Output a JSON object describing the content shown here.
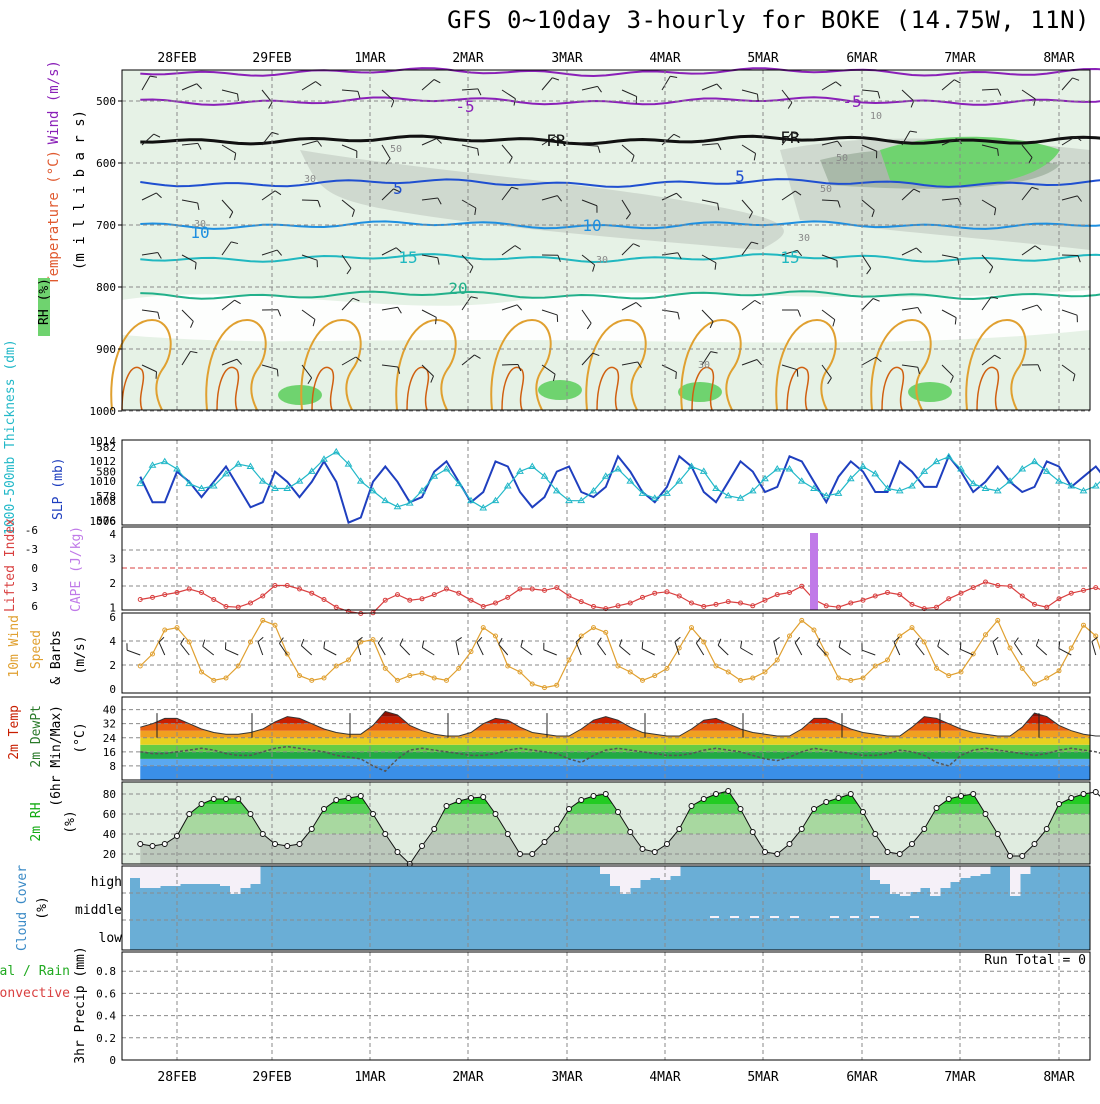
{
  "title": "GFS 0~10day 3-hourly for BOKE (14.75W, 11N)",
  "colors": {
    "frame": "#000000",
    "grid": "#8a8a8a",
    "rh_light": "#e6f2e6",
    "rh_mid": "#cfd9cf",
    "rh_dark": "#a9b9a9",
    "rh_green": "#6fd36f",
    "slp": "#1f3fbf",
    "thickness": "#22b8c8",
    "lifted": "#d94040",
    "cape": "#c07ae8",
    "wind10": "#e0a030",
    "temp_hot": "#c81e00",
    "dew": "#555555",
    "rh2m": "#22cc22",
    "cloud": "#6aaed6",
    "cloud_white": "#f5f0f8"
  },
  "x_axis": {
    "top_labels": [
      "28FEB",
      "29FEB",
      "1MAR",
      "2MAR",
      "3MAR",
      "4MAR",
      "5MAR",
      "6MAR",
      "7MAR",
      "8MAR"
    ],
    "bottom_labels": [
      "28FEB",
      "29FEB",
      "1MAR",
      "2MAR",
      "3MAR",
      "4MAR",
      "5MAR",
      "6MAR",
      "7MAR",
      "8MAR"
    ]
  },
  "panels": {
    "upper": {
      "ylabel_wind": "Wind (m/s)",
      "ylabel_temp": "Temperature (°C)",
      "ylabel_rh": "RH (%)",
      "ylabel_mb": "(m i l l i b a r s)",
      "yticks": [
        "500",
        "600",
        "700",
        "800",
        "900",
        "1000"
      ],
      "contour_labels": [
        "-5",
        "-5",
        "FR",
        "FR",
        "5",
        "5",
        "10",
        "10",
        "15",
        "15",
        "20"
      ],
      "rh_labels": [
        "50",
        "50",
        "30",
        "30",
        "30",
        "10",
        "30",
        "50",
        "30"
      ]
    },
    "slp": {
      "ylabel_left": "1000-500mb Thickness (dm)",
      "ylabel_right": "SLP (mb)",
      "yticks_left": [
        "582",
        "580",
        "578",
        "576"
      ],
      "yticks_right": [
        "1014",
        "1012",
        "1010",
        "1008",
        "1006"
      ]
    },
    "li": {
      "ylabel_left": "Lifted Index",
      "ylabel_right": "CAPE (J/kg)",
      "yticks_left": [
        "-6",
        "-3",
        "0",
        "3",
        "6"
      ],
      "yticks_right": [
        "4",
        "3",
        "2",
        "1"
      ]
    },
    "wind": {
      "ylabel_1": "10m Wind",
      "ylabel_2": "Speed",
      "ylabel_3": "& Barbs",
      "units": "(m/s)",
      "yticks": [
        "6",
        "4",
        "2",
        "0"
      ]
    },
    "temp": {
      "ylabel_1": "2m Temp",
      "ylabel_2": "2m DewPt",
      "ylabel_3": "(6hr Min/Max)",
      "units": "(°C)",
      "yticks": [
        "40",
        "32",
        "24",
        "16",
        "8"
      ]
    },
    "rh": {
      "ylabel": "2m RH",
      "units": "(%)",
      "yticks": [
        "80",
        "60",
        "40",
        "20"
      ]
    },
    "cloud": {
      "ylabel": "Cloud Cover",
      "units": "(%)",
      "levels": [
        "high",
        "middle",
        "low"
      ]
    },
    "precip": {
      "ylabel_1": "Total / Rain",
      "ylabel_2": "Convective",
      "ylabel_3": "3hr Precip (mm)",
      "yticks": [
        "0.8",
        "0.6",
        "0.4",
        "0.2",
        "0"
      ],
      "run_total": "Run Total = 0"
    }
  },
  "chart_data": [
    {
      "type": "line",
      "panel": "1000-500mb Thickness / SLP",
      "x_start": "2024-02-27 15Z",
      "x_step_hours": 3,
      "series": [
        {
          "name": "SLP (mb)",
          "values": [
            1010.5,
            1008,
            1008,
            1011,
            1010,
            1008.5,
            1010,
            1011.5,
            1009.5,
            1007.5,
            1008,
            1011,
            1010,
            1008.5,
            1010,
            1012,
            1010,
            1006,
            1006.5,
            1010,
            1011.5,
            1010,
            1008,
            1008.5,
            1011,
            1012,
            1010,
            1008,
            1009,
            1012,
            1011.5,
            1009,
            1007.5,
            1008.5,
            1011,
            1011.5,
            1009,
            1008.5,
            1009.5,
            1012.5,
            1011,
            1009,
            1008,
            1009.5,
            1012.5,
            1011.5,
            1009,
            1008,
            1010,
            1012,
            1011,
            1009,
            1009.5,
            1012.5,
            1012,
            1010,
            1008,
            1010.5,
            1012,
            1011,
            1009,
            1009,
            1012,
            1011,
            1009.5,
            1009.5,
            1012.5,
            1011,
            1009,
            1010,
            1011.5,
            1010,
            1009,
            1009.5,
            1012,
            1011.5,
            1009.5,
            1010.5,
            1011.5,
            1010,
            1011.5
          ]
        },
        {
          "name": "1000-500mb Thickness (dm)",
          "values": [
            579,
            580.5,
            580.8,
            580.2,
            579,
            578.6,
            578.8,
            579.8,
            580.6,
            580.4,
            579.2,
            578.6,
            578.6,
            579.2,
            580,
            581,
            581.6,
            580.6,
            579.2,
            578.4,
            577.6,
            577.1,
            577.4,
            578.4,
            579.6,
            580.2,
            579,
            577.6,
            577,
            577.6,
            578.8,
            580,
            580.4,
            579.6,
            578.4,
            577.6,
            577.6,
            578.4,
            579.6,
            580.2,
            579.2,
            578.2,
            577.8,
            578.2,
            579.2,
            580.4,
            580,
            578.6,
            578,
            577.8,
            578.4,
            579.4,
            580.2,
            580.2,
            579.2,
            578.6,
            578,
            578.2,
            579.4,
            580.4,
            579.8,
            578.6,
            578.4,
            578.8,
            580,
            580.8,
            581.2,
            580.2,
            579,
            578.6,
            578.4,
            579.2,
            580.2,
            580.8,
            580,
            579.2,
            578.8,
            578.4,
            578.8,
            579.8,
            578.2
          ]
        }
      ],
      "ylim_left": [
        576,
        582
      ],
      "ylim_right": [
        1006,
        1014
      ]
    },
    {
      "type": "line",
      "panel": "Lifted Index / CAPE",
      "series": [
        {
          "name": "Lifted Index",
          "values": [
            4.5,
            4.2,
            3.8,
            3.5,
            3,
            3.5,
            4.5,
            5.5,
            5.6,
            5,
            4,
            2.5,
            2.5,
            3,
            3.6,
            4.5,
            5.6,
            6.2,
            6.5,
            6.4,
            4.6,
            3.8,
            4.6,
            4.4,
            3.8,
            3,
            3.6,
            4.6,
            5.5,
            5,
            4.2,
            3,
            3,
            3.2,
            2.8,
            4,
            4.8,
            5.5,
            5.8,
            5.4,
            5,
            4.2,
            3.6,
            3.4,
            4,
            5,
            5.5,
            5.2,
            4.8,
            5,
            5.4,
            4.6,
            3.8,
            3.5,
            2.6,
            4.5,
            5.4,
            5.6,
            5,
            4.6,
            4,
            3.5,
            3.8,
            5.2,
            5.8,
            5.6,
            4.4,
            3.6,
            2.8,
            2,
            2.5,
            2.6,
            4,
            5.2,
            5.6,
            4.4,
            3.6,
            3.2,
            2.8,
            3.5,
            5.2
          ]
        },
        {
          "name": "CAPE (J/kg)",
          "bar_index": 55,
          "bar_value": 4
        }
      ],
      "ylim_left": [
        -6,
        6
      ],
      "ylim_right": [
        1,
        4.5
      ]
    },
    {
      "type": "line",
      "panel": "10m Wind Speed",
      "series": [
        {
          "name": "10m Wind Speed (m/s)",
          "values": [
            2,
            3,
            5,
            5.2,
            4,
            1.5,
            0.8,
            1,
            2,
            4,
            5.8,
            5.4,
            3,
            1.2,
            0.8,
            1,
            2,
            2.5,
            4,
            4.2,
            1.8,
            0.8,
            1.2,
            1.4,
            1,
            0.8,
            1.8,
            3.2,
            5.2,
            4.5,
            2,
            1.5,
            0.5,
            0.2,
            0.4,
            2.5,
            4.5,
            5.2,
            4.8,
            2,
            1.5,
            0.8,
            1.2,
            1.8,
            3.5,
            5.2,
            4,
            2,
            1.5,
            0.8,
            1,
            1.5,
            2.5,
            4.5,
            5.8,
            5,
            3,
            1,
            0.8,
            1,
            2,
            2.5,
            4.5,
            5.2,
            4,
            1.8,
            1.2,
            1.5,
            3,
            4.6,
            5.8,
            3.5,
            1.8,
            0.5,
            1,
            1.6,
            3.5,
            5.4,
            4.5,
            1.5,
            1.2
          ]
        }
      ],
      "ylim": [
        0,
        6
      ]
    },
    {
      "type": "area",
      "panel": "2m Temp / 2m DewPt",
      "series": [
        {
          "name": "2m Temp (°C)",
          "values": [
            30,
            32,
            35,
            35,
            32,
            29,
            27,
            26,
            26,
            27,
            29,
            33,
            36,
            35,
            32,
            29,
            27,
            26,
            26,
            31,
            39,
            37,
            31,
            28,
            26,
            25,
            25,
            27,
            32,
            35,
            34,
            30,
            27,
            26,
            25,
            25,
            29,
            34,
            36,
            34,
            30,
            27,
            26,
            25,
            25,
            29,
            34,
            35,
            32,
            29,
            27,
            26,
            25,
            25,
            29,
            35,
            35,
            32,
            29,
            27,
            26,
            25,
            25,
            30,
            36,
            35,
            32,
            29,
            27,
            26,
            25,
            25,
            30,
            38,
            36,
            31,
            28,
            26,
            25,
            25,
            23
          ]
        },
        {
          "name": "2m DewPt (°C)",
          "values": [
            16,
            15,
            15,
            16,
            17,
            18,
            17,
            15,
            14,
            14,
            16,
            18,
            19,
            18,
            17,
            16,
            14,
            13,
            12,
            8,
            5,
            12,
            17,
            18,
            17,
            16,
            15,
            14,
            14,
            15,
            17,
            18,
            17,
            16,
            15,
            12,
            10,
            14,
            17,
            18,
            17,
            16,
            15,
            14,
            14,
            15,
            17,
            18,
            17,
            16,
            14,
            12,
            11,
            13,
            16,
            18,
            17,
            16,
            15,
            14,
            14,
            15,
            17,
            16,
            14,
            10,
            8,
            14,
            17,
            18,
            17,
            16,
            15,
            14,
            15,
            17,
            18,
            17,
            16,
            14,
            13
          ]
        }
      ],
      "ylim": [
        0,
        42
      ]
    },
    {
      "type": "area",
      "panel": "2m RH",
      "series": [
        {
          "name": "2m RH (%)",
          "values": [
            30,
            28,
            30,
            38,
            60,
            70,
            75,
            75,
            75,
            60,
            40,
            30,
            28,
            30,
            45,
            65,
            74,
            76,
            78,
            60,
            40,
            22,
            10,
            28,
            45,
            68,
            73,
            76,
            77,
            60,
            40,
            20,
            20,
            32,
            45,
            65,
            74,
            78,
            80,
            62,
            42,
            25,
            22,
            30,
            45,
            68,
            75,
            80,
            83,
            65,
            42,
            22,
            20,
            30,
            45,
            65,
            72,
            76,
            80,
            62,
            40,
            22,
            20,
            30,
            45,
            66,
            75,
            78,
            80,
            60,
            40,
            18,
            18,
            30,
            45,
            70,
            76,
            80,
            82,
            70,
            82
          ]
        }
      ],
      "ylim": [
        10,
        88
      ]
    },
    {
      "type": "bar",
      "panel": "Cloud Cover",
      "series": [
        {
          "name": "high",
          "values": [
            12,
            22,
            22,
            20,
            20,
            18,
            18,
            18,
            18,
            20,
            28,
            22,
            18,
            4,
            4,
            4,
            4,
            4,
            4,
            4,
            4,
            4,
            4,
            4,
            4,
            4,
            4,
            4,
            4,
            4,
            4,
            4,
            4,
            4,
            4,
            4,
            4,
            4,
            4,
            4,
            4,
            4,
            4,
            4,
            4,
            4,
            4,
            8,
            20,
            28,
            22,
            14,
            12,
            14,
            10,
            4,
            4,
            4,
            4,
            4,
            4,
            4,
            4,
            4,
            4,
            4,
            4,
            4,
            4,
            4,
            4,
            4,
            4,
            4,
            14,
            18,
            28,
            30,
            26,
            22,
            30,
            22,
            16,
            12,
            10,
            8,
            4,
            4,
            30,
            8,
            4,
            4,
            4,
            4,
            4,
            4
          ]
        }
      ],
      "ylim": [
        0,
        100
      ]
    },
    {
      "type": "bar",
      "panel": "3hr Precip",
      "series": [
        {
          "name": "Total / Rain",
          "values": []
        }
      ],
      "ylim": [
        0,
        0.9
      ]
    }
  ]
}
